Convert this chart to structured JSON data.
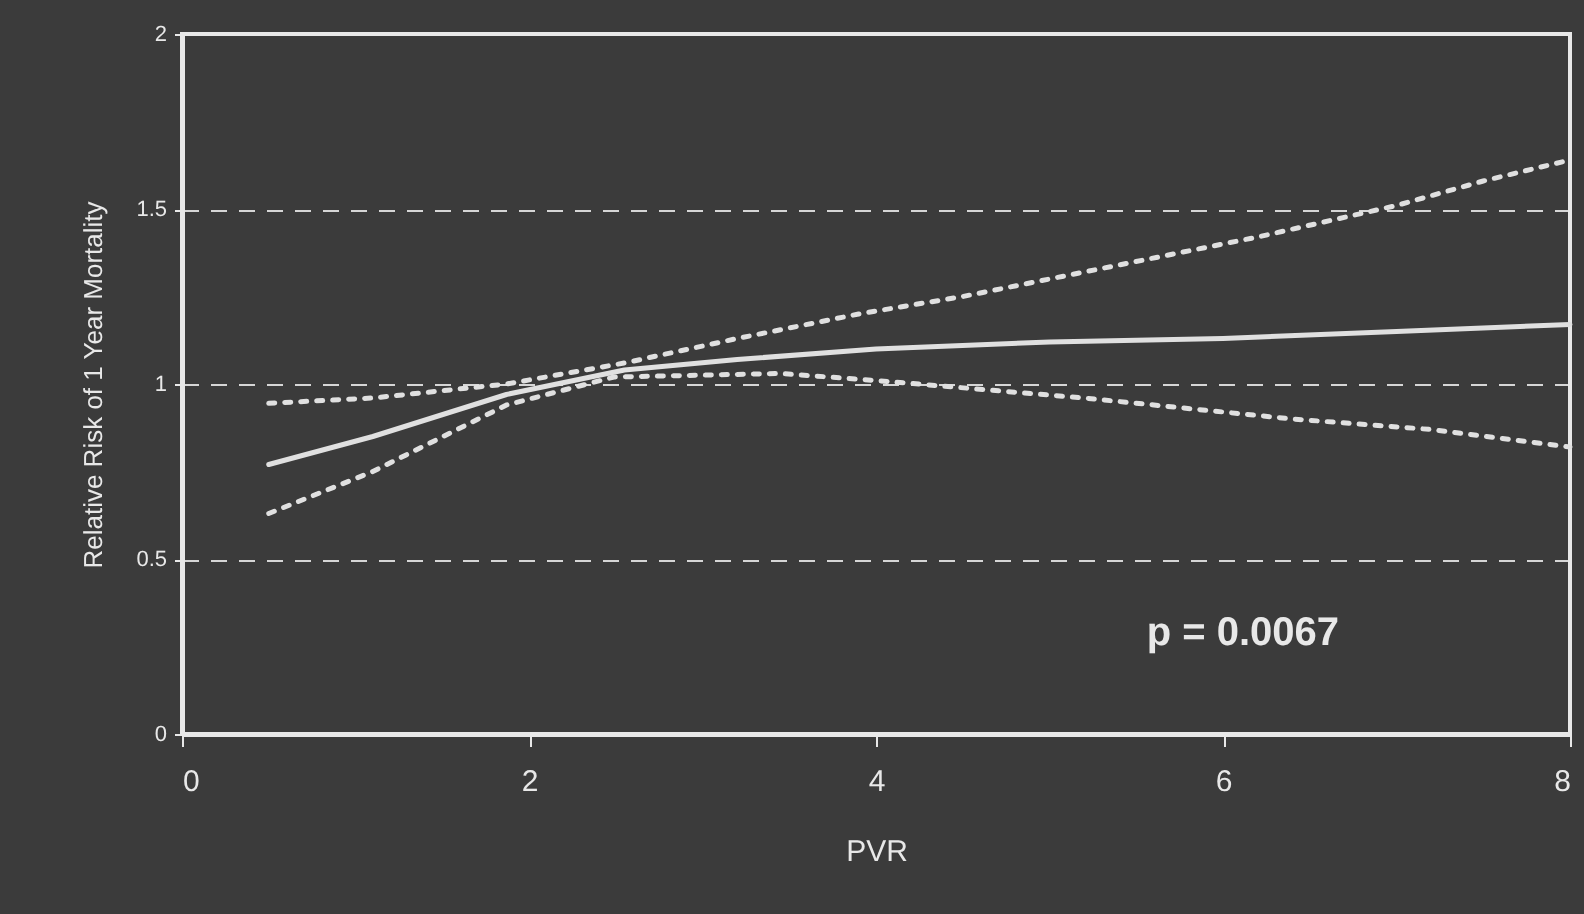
{
  "chart_data": {
    "type": "line",
    "xlabel": "PVR",
    "ylabel": "Relative Risk of 1 Year Mortality",
    "xlim": [
      0,
      8
    ],
    "xticks": [
      0,
      2,
      4,
      6,
      8
    ],
    "ylim": [
      0,
      2
    ],
    "yticks": [
      0,
      0.5,
      1,
      1.5,
      2
    ],
    "grid": "y",
    "annotations": [
      "p = 0.0067"
    ],
    "series": [
      {
        "color": "#e0e0e0",
        "line_style": "solid",
        "x": [
          0.5,
          1.1,
          1.87,
          2.55,
          3.2,
          4.0,
          5.0,
          6.0,
          7.0,
          8.0
        ],
        "values": [
          0.77,
          0.85,
          0.97,
          1.04,
          1.07,
          1.1,
          1.12,
          1.13,
          1.15,
          1.17
        ]
      },
      {
        "color": "#e0e0e0",
        "line_style": "dotted",
        "x": [
          0.5,
          1.1,
          1.87,
          2.55,
          3.2,
          3.9,
          4.5,
          5.2,
          6.2,
          7.0,
          7.5,
          8.0
        ],
        "values": [
          0.945,
          0.96,
          1.0,
          1.06,
          1.13,
          1.2,
          1.25,
          1.32,
          1.42,
          1.51,
          1.58,
          1.64
        ]
      },
      {
        "color": "#e0e0e0",
        "line_style": "dotted",
        "x": [
          0.5,
          1.1,
          1.87,
          2.49,
          3.45,
          4.0,
          5.2,
          6.4,
          7.2,
          8.0
        ],
        "values": [
          0.63,
          0.75,
          0.94,
          1.02,
          1.03,
          1.01,
          0.96,
          0.9,
          0.87,
          0.82
        ]
      }
    ]
  }
}
